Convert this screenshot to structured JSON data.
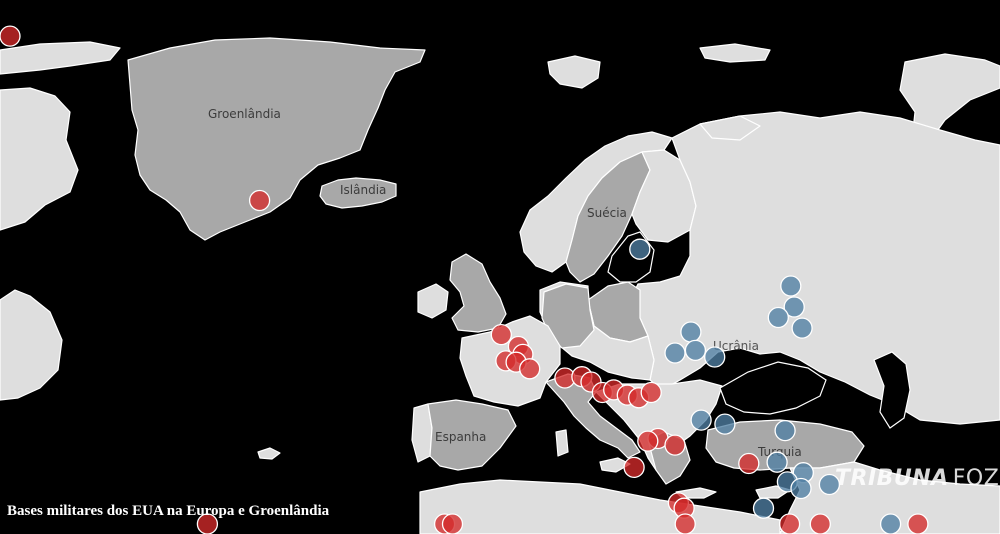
{
  "caption": "Bases militares dos EUA na Europa e Groenlândia",
  "logo": {
    "part1": "TRIBUNA",
    "part2": "FOZ"
  },
  "labels": {
    "greenland": "Groenlândia",
    "iceland": "Islândia",
    "sweden": "Suécia",
    "ukraine": "Ucrânia",
    "spain": "Espanha",
    "turkey": "Turquia"
  },
  "colors": {
    "ocean": "#000000",
    "highlight_land": "#a8a8a8",
    "other_land": "#dedede",
    "red_marker": "#d42a2a",
    "blue_marker": "#4f7fa3"
  },
  "legend_groups": [
    "red",
    "blue"
  ],
  "bases": [
    {
      "group": "red",
      "lat": 76.5,
      "lon": -68.7
    },
    {
      "group": "red",
      "lat": 64.0,
      "lon": -22.6
    },
    {
      "group": "red",
      "lat": 38.7,
      "lon": -27.2
    },
    {
      "group": "red",
      "lat": 53.8,
      "lon": -1.3
    },
    {
      "group": "red",
      "lat": 52.9,
      "lon": 0.2
    },
    {
      "group": "red",
      "lat": 52.3,
      "lon": 0.6
    },
    {
      "group": "red",
      "lat": 51.8,
      "lon": -0.9
    },
    {
      "group": "red",
      "lat": 51.7,
      "lon": 0.0
    },
    {
      "group": "red",
      "lat": 51.2,
      "lon": 1.2
    },
    {
      "group": "red",
      "lat": 50.5,
      "lon": 4.3
    },
    {
      "group": "red",
      "lat": 50.6,
      "lon": 5.8
    },
    {
      "group": "red",
      "lat": 50.2,
      "lon": 6.6
    },
    {
      "group": "red",
      "lat": 49.4,
      "lon": 7.6
    },
    {
      "group": "red",
      "lat": 49.6,
      "lon": 8.6
    },
    {
      "group": "red",
      "lat": 49.2,
      "lon": 9.8
    },
    {
      "group": "red",
      "lat": 49.0,
      "lon": 10.8
    },
    {
      "group": "red",
      "lat": 49.4,
      "lon": 11.9
    },
    {
      "group": "red",
      "lat": 45.9,
      "lon": 12.5
    },
    {
      "group": "red",
      "lat": 45.4,
      "lon": 14.0
    },
    {
      "group": "red",
      "lat": 45.7,
      "lon": 11.6
    },
    {
      "group": "red",
      "lat": 43.7,
      "lon": 10.4
    },
    {
      "group": "red",
      "lat": 41.0,
      "lon": 14.3
    },
    {
      "group": "red",
      "lat": 40.6,
      "lon": 14.8
    },
    {
      "group": "red",
      "lat": 37.4,
      "lon": 14.9
    },
    {
      "group": "red",
      "lat": 36.6,
      "lon": -6.3
    },
    {
      "group": "red",
      "lat": 37.2,
      "lon": -5.6
    },
    {
      "group": "red",
      "lat": 44.0,
      "lon": 20.5
    },
    {
      "group": "red",
      "lat": 38.3,
      "lon": 26.8
    },
    {
      "group": "red",
      "lat": 37.0,
      "lon": 35.4
    },
    {
      "group": "red",
      "lat": 35.5,
      "lon": 24.1
    },
    {
      "group": "blue",
      "lat": 60.3,
      "lon": 10.9
    },
    {
      "group": "blue",
      "lat": 57.5,
      "lon": 24.2
    },
    {
      "group": "blue",
      "lat": 55.9,
      "lon": 24.5
    },
    {
      "group": "blue",
      "lat": 55.1,
      "lon": 23.1
    },
    {
      "group": "blue",
      "lat": 54.3,
      "lon": 25.2
    },
    {
      "group": "blue",
      "lat": 54.0,
      "lon": 15.4
    },
    {
      "group": "blue",
      "lat": 52.4,
      "lon": 14.0
    },
    {
      "group": "blue",
      "lat": 52.6,
      "lon": 15.8
    },
    {
      "group": "blue",
      "lat": 52.1,
      "lon": 17.5
    },
    {
      "group": "blue",
      "lat": 47.3,
      "lon": 16.3
    },
    {
      "group": "blue",
      "lat": 47.0,
      "lon": 18.4
    },
    {
      "group": "blue",
      "lat": 46.5,
      "lon": 23.7
    },
    {
      "group": "blue",
      "lat": 44.1,
      "lon": 23.0
    },
    {
      "group": "blue",
      "lat": 43.3,
      "lon": 25.3
    },
    {
      "group": "blue",
      "lat": 42.4,
      "lon": 27.6
    },
    {
      "group": "blue",
      "lat": 42.6,
      "lon": 23.9
    },
    {
      "group": "blue",
      "lat": 42.1,
      "lon": 25.1
    },
    {
      "group": "blue",
      "lat": 40.6,
      "lon": 21.8
    },
    {
      "group": "blue",
      "lat": 34.8,
      "lon": 33.0
    }
  ]
}
